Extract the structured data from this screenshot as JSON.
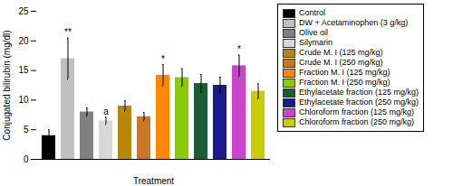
{
  "chart_data": {
    "type": "bar",
    "categories": [
      "Control",
      "DW + Acetaminophen (3 g/kg)",
      "Olive oil",
      "Silymarin",
      "Crude M. I (125 mg/kg)",
      "Crude M. I (250 mg/kg)",
      "Fraction M. I (125 mg/kg)",
      "Fraction M. I (250 mg/kg)",
      "Ethylacetate fraction (125 mg/kg)",
      "Ethylacetate fraction (250 mg/kg)",
      "Chloroform fraction (125 mg/kg)",
      "Chloroform fraction (250 mg/kg)"
    ],
    "values": [
      4.0,
      17.0,
      8.0,
      6.5,
      9.0,
      7.2,
      14.2,
      13.8,
      12.8,
      12.5,
      15.8,
      11.5
    ],
    "errors": [
      1.0,
      3.5,
      0.7,
      0.6,
      0.9,
      0.7,
      1.8,
      1.5,
      1.5,
      1.4,
      1.8,
      1.3
    ],
    "colors": [
      "#000000",
      "#c0c0c0",
      "#808080",
      "#d8d8d8",
      "#b8860b",
      "#cc7722",
      "#ff8800",
      "#88cc00",
      "#1a5c35",
      "#1a1a8c",
      "#cc44cc",
      "#cccc00"
    ],
    "annotations": [
      null,
      "**",
      null,
      "a",
      null,
      null,
      "*",
      null,
      null,
      null,
      "*",
      null
    ],
    "xlabel": "Treatment",
    "ylabel": "Conjugated bilirubin (mg/dl)",
    "ylim": [
      0,
      25
    ],
    "yticks": [
      0,
      5,
      10,
      15,
      20,
      25
    ],
    "grid": false,
    "legend": "right",
    "tick_labels": "y"
  }
}
